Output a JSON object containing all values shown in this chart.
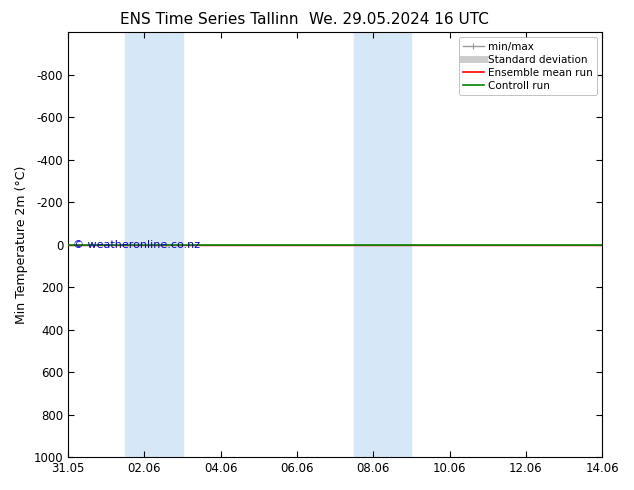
{
  "title": "ENS Time Series Tallinn",
  "title2": "We. 29.05.2024 16 UTC",
  "ylabel": "Min Temperature 2m (°C)",
  "ylim_top": -1000,
  "ylim_bottom": 1000,
  "yticks": [
    -800,
    -600,
    -400,
    -200,
    0,
    200,
    400,
    600,
    800,
    1000
  ],
  "xlim": [
    0,
    14
  ],
  "xtick_labels": [
    "31.05",
    "02.06",
    "04.06",
    "06.06",
    "08.06",
    "10.06",
    "12.06",
    "14.06"
  ],
  "xtick_positions": [
    0,
    2,
    4,
    6,
    8,
    10,
    12,
    14
  ],
  "shaded_regions": [
    {
      "x_start": 1.5,
      "x_end": 3.0
    },
    {
      "x_start": 7.5,
      "x_end": 9.0
    }
  ],
  "shaded_color": "#d6e8f7",
  "control_run_y": 0,
  "ensemble_mean_y": 0,
  "background_color": "#ffffff",
  "plot_bg_color": "#ffffff",
  "legend_items": [
    {
      "label": "min/max",
      "color": "#999999",
      "lw": 1.0
    },
    {
      "label": "Standard deviation",
      "color": "#cccccc",
      "lw": 5
    },
    {
      "label": "Ensemble mean run",
      "color": "#ff0000",
      "lw": 1.2
    },
    {
      "label": "Controll run",
      "color": "#008800",
      "lw": 1.2
    }
  ],
  "watermark": "© weatheronline.co.nz",
  "watermark_color": "#0000cc",
  "control_run_color": "#008800",
  "ensemble_mean_color": "#ff0000",
  "title_fontsize": 11,
  "tick_fontsize": 8.5,
  "ylabel_fontsize": 9
}
